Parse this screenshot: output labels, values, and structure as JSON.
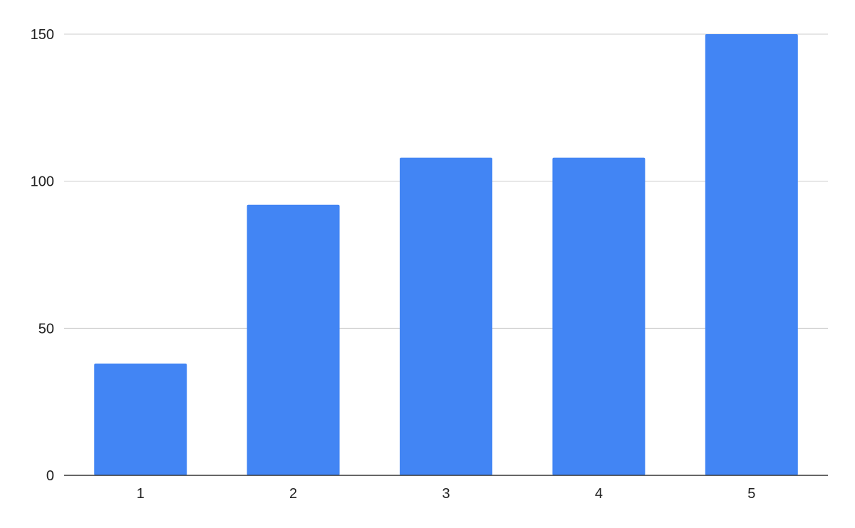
{
  "chart_data": {
    "type": "bar",
    "categories": [
      "1",
      "2",
      "3",
      "4",
      "5"
    ],
    "values": [
      38,
      92,
      108,
      108,
      150
    ],
    "title": "",
    "xlabel": "",
    "ylabel": "",
    "ylim": [
      0,
      150
    ],
    "yticks": [
      "0",
      "50",
      "100",
      "150"
    ],
    "ytick_values": [
      0,
      50,
      100,
      150
    ],
    "grid": true,
    "legend": "none",
    "colors": {
      "bar": "#4285f4",
      "grid": "#cccccc",
      "axis": "#333333"
    }
  }
}
